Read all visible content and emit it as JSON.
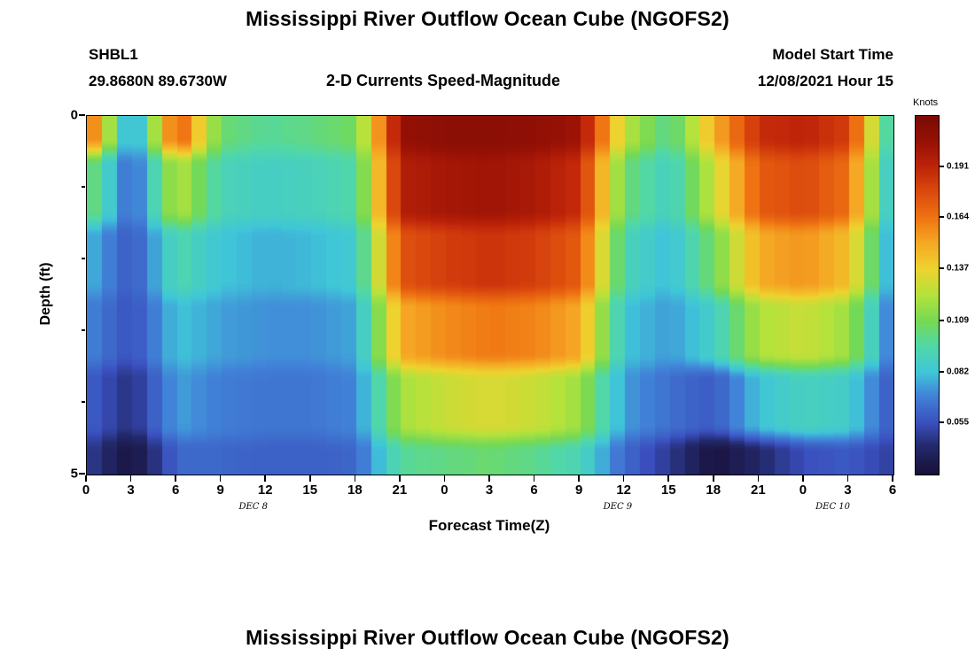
{
  "page": {
    "second_plot_title": "Mississippi River Outflow Ocean Cube (NGOFS2)"
  },
  "header": {
    "station_id": "SHBL1",
    "station_coords": "29.8680N  89.6730W",
    "subtitle": "2-D Currents Speed-Magnitude",
    "model_start_label": "Model Start Time",
    "model_start_value": "12/08/2021 Hour 15"
  },
  "chart_data": {
    "type": "heatmap",
    "title": "Mississippi River Outflow Ocean Cube (NGOFS2)",
    "subtitle": "2-D Currents Speed-Magnitude",
    "xlabel": "Forecast Time(Z)",
    "ylabel": "Depth (ft)",
    "colorbar_label": "Knots",
    "units": "knots",
    "xlim_hours": [
      0,
      54
    ],
    "ylim": [
      0,
      5
    ],
    "x_tick_hours": [
      0,
      3,
      6,
      9,
      12,
      15,
      18,
      21,
      24,
      27,
      30,
      33,
      36,
      39,
      42,
      45,
      48,
      51,
      54
    ],
    "x_tick_labels": [
      "0",
      "3",
      "6",
      "9",
      "12",
      "15",
      "18",
      "21",
      "0",
      "3",
      "6",
      "9",
      "12",
      "15",
      "18",
      "21",
      "0",
      "3",
      "6"
    ],
    "date_labels": [
      {
        "label": "DEC 8",
        "hour": 11.2
      },
      {
        "label": "DEC 9",
        "hour": 35.6
      },
      {
        "label": "DEC 10",
        "hour": 50.0
      }
    ],
    "y_ticks": [
      {
        "depth": 0,
        "label": "0"
      },
      {
        "depth": 1,
        "label": ""
      },
      {
        "depth": 2,
        "label": ""
      },
      {
        "depth": 3,
        "label": ""
      },
      {
        "depth": 4,
        "label": ""
      },
      {
        "depth": 5,
        "label": "5"
      }
    ],
    "vmin": 0.028,
    "vmax": 0.218,
    "colorbar_ticks": [
      0.191,
      0.164,
      0.137,
      0.109,
      0.082,
      0.055
    ],
    "depths_ft": [
      0,
      1,
      2,
      3,
      4,
      5
    ],
    "values": [
      [
        0.175,
        0.065,
        0.175,
        0.105,
        0.098,
        0.102,
        0.108,
        0.205,
        0.21,
        0.21,
        0.208,
        0.202,
        0.125,
        0.098,
        0.148,
        0.188,
        0.192,
        0.182,
        0.08
      ],
      [
        0.11,
        0.06,
        0.125,
        0.092,
        0.088,
        0.09,
        0.096,
        0.195,
        0.2,
        0.202,
        0.198,
        0.188,
        0.105,
        0.088,
        0.128,
        0.172,
        0.178,
        0.166,
        0.074
      ],
      [
        0.08,
        0.057,
        0.095,
        0.082,
        0.078,
        0.08,
        0.085,
        0.175,
        0.182,
        0.186,
        0.182,
        0.172,
        0.092,
        0.08,
        0.108,
        0.15,
        0.156,
        0.144,
        0.068
      ],
      [
        0.07,
        0.055,
        0.082,
        0.075,
        0.072,
        0.072,
        0.076,
        0.15,
        0.158,
        0.163,
        0.16,
        0.15,
        0.082,
        0.074,
        0.088,
        0.122,
        0.128,
        0.118,
        0.062
      ],
      [
        0.06,
        0.045,
        0.075,
        0.068,
        0.066,
        0.066,
        0.07,
        0.12,
        0.128,
        0.132,
        0.128,
        0.118,
        0.074,
        0.064,
        0.058,
        0.082,
        0.09,
        0.086,
        0.056
      ],
      [
        0.05,
        0.03,
        0.062,
        0.062,
        0.06,
        0.06,
        0.062,
        0.098,
        0.102,
        0.105,
        0.1,
        0.092,
        0.062,
        0.048,
        0.03,
        0.042,
        0.055,
        0.058,
        0.05
      ]
    ],
    "colormap": [
      [
        0.0,
        "#181038"
      ],
      [
        0.08,
        "#232a6c"
      ],
      [
        0.142,
        "#3a4fbe"
      ],
      [
        0.22,
        "#4183d8"
      ],
      [
        0.284,
        "#3fc6d8"
      ],
      [
        0.36,
        "#52d8a6"
      ],
      [
        0.426,
        "#74d955"
      ],
      [
        0.5,
        "#b4e23c"
      ],
      [
        0.574,
        "#eed32f"
      ],
      [
        0.65,
        "#f5a623"
      ],
      [
        0.716,
        "#ef7412"
      ],
      [
        0.8,
        "#d8440d"
      ],
      [
        0.858,
        "#bf2409"
      ],
      [
        0.93,
        "#971105"
      ],
      [
        1.0,
        "#7a0b04"
      ]
    ]
  }
}
